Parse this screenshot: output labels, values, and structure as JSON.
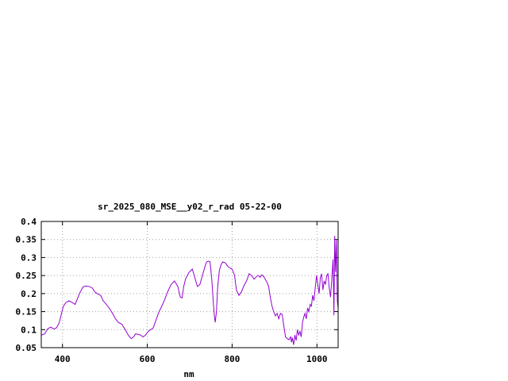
{
  "chart_data": {
    "type": "line",
    "title": "sr_2025_080_MSE__y02_r_rad 05-22-00",
    "xlabel": "nm",
    "ylabel": "",
    "xlim": [
      350,
      1050
    ],
    "ylim": [
      0.05,
      0.4
    ],
    "x_ticks": [
      400,
      600,
      800,
      1000
    ],
    "x_tick_labels": [
      "400",
      "600",
      "800",
      "1000"
    ],
    "y_ticks": [
      0.05,
      0.1,
      0.15,
      0.2,
      0.25,
      0.3,
      0.35,
      0.4
    ],
    "y_tick_labels": [
      "0.05",
      "0.1",
      "0.15",
      "0.2",
      "0.25",
      "0.3",
      "0.35",
      "0.4"
    ],
    "grid": true,
    "legend": "none",
    "series": [
      {
        "color": "#9400d3",
        "x": [
          350,
          358,
          365,
          372,
          380,
          386,
          392,
          398,
          402,
          408,
          415,
          422,
          430,
          440,
          448,
          455,
          462,
          470,
          476,
          482,
          490,
          496,
          502,
          510,
          518,
          525,
          532,
          540,
          548,
          555,
          562,
          568,
          572,
          578,
          584,
          590,
          596,
          602,
          608,
          614,
          620,
          626,
          632,
          640,
          648,
          656,
          664,
          672,
          678,
          682,
          686,
          690,
          698,
          706,
          712,
          718,
          724,
          730,
          736,
          740,
          744,
          748,
          752,
          756,
          758,
          760,
          763,
          766,
          770,
          774,
          778,
          784,
          790,
          796,
          800,
          806,
          810,
          816,
          822,
          828,
          834,
          840,
          846,
          852,
          858,
          862,
          866,
          870,
          874,
          878,
          882,
          886,
          890,
          894,
          898,
          902,
          906,
          910,
          914,
          918,
          922,
          926,
          930,
          934,
          938,
          940,
          942,
          945,
          948,
          951,
          954,
          957,
          960,
          963,
          966,
          969,
          972,
          975,
          978,
          981,
          984,
          987,
          990,
          993,
          996,
          999,
          1002,
          1005,
          1008,
          1011,
          1014,
          1017,
          1020,
          1023,
          1026,
          1029,
          1032,
          1035,
          1038,
          1040,
          1042,
          1044,
          1046,
          1048,
          1050
        ],
        "y": [
          0.085,
          0.088,
          0.102,
          0.107,
          0.102,
          0.105,
          0.118,
          0.145,
          0.165,
          0.175,
          0.18,
          0.176,
          0.17,
          0.2,
          0.218,
          0.221,
          0.22,
          0.216,
          0.205,
          0.2,
          0.195,
          0.18,
          0.172,
          0.16,
          0.145,
          0.13,
          0.12,
          0.115,
          0.1,
          0.085,
          0.075,
          0.08,
          0.088,
          0.087,
          0.085,
          0.08,
          0.085,
          0.095,
          0.1,
          0.105,
          0.125,
          0.145,
          0.16,
          0.18,
          0.205,
          0.225,
          0.235,
          0.22,
          0.19,
          0.188,
          0.22,
          0.24,
          0.258,
          0.268,
          0.245,
          0.22,
          0.225,
          0.25,
          0.275,
          0.288,
          0.29,
          0.288,
          0.24,
          0.17,
          0.14,
          0.12,
          0.15,
          0.22,
          0.265,
          0.28,
          0.288,
          0.285,
          0.275,
          0.27,
          0.268,
          0.25,
          0.21,
          0.195,
          0.205,
          0.222,
          0.235,
          0.255,
          0.25,
          0.24,
          0.248,
          0.25,
          0.245,
          0.252,
          0.248,
          0.24,
          0.232,
          0.22,
          0.19,
          0.165,
          0.15,
          0.138,
          0.145,
          0.13,
          0.145,
          0.142,
          0.11,
          0.08,
          0.075,
          0.072,
          0.08,
          0.065,
          0.078,
          0.058,
          0.085,
          0.07,
          0.1,
          0.085,
          0.095,
          0.08,
          0.12,
          0.135,
          0.145,
          0.13,
          0.16,
          0.15,
          0.17,
          0.165,
          0.195,
          0.18,
          0.215,
          0.25,
          0.225,
          0.2,
          0.245,
          0.255,
          0.21,
          0.235,
          0.225,
          0.25,
          0.255,
          0.215,
          0.19,
          0.24,
          0.295,
          0.14,
          0.36,
          0.26,
          0.35,
          0.18,
          0.16
        ]
      }
    ]
  }
}
